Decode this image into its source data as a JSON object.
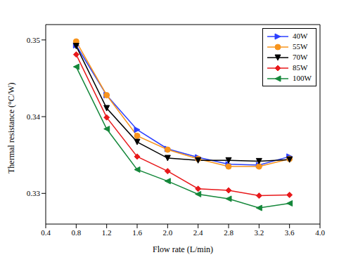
{
  "chart_data": {
    "type": "line",
    "x_label": "Flow rate (L/min)",
    "y_label": "Thermal resistance (°C/W)",
    "x": [
      0.8,
      1.2,
      1.6,
      2.0,
      2.4,
      2.8,
      3.2,
      3.6
    ],
    "xlim": [
      0.4,
      4.0
    ],
    "xticks": [
      0.4,
      0.8,
      1.2,
      1.6,
      {
        "value": 2,
        "label": "2.0"
      },
      2.4,
      2.8,
      3.2,
      3.6,
      {
        "value": 4,
        "label": "4.0"
      }
    ],
    "ylim": [
      0.326,
      0.352
    ],
    "yticks": [
      0.33,
      0.34,
      0.35
    ],
    "grid": false,
    "legend": "upper right",
    "series": [
      {
        "name": "40W",
        "color": "#2b3fff",
        "marker": "triangle-right",
        "values": [
          0.3493,
          0.3428,
          0.3383,
          0.3358,
          0.3347,
          0.3338,
          0.3337,
          0.3348
        ]
      },
      {
        "name": "55W",
        "color": "#f7941d",
        "marker": "circle",
        "values": [
          0.3498,
          0.3428,
          0.3375,
          0.3357,
          0.3345,
          0.3335,
          0.3335,
          0.3345
        ]
      },
      {
        "name": "70W",
        "color": "#000000",
        "marker": "triangle-down",
        "values": [
          0.3492,
          0.3411,
          0.3367,
          0.3346,
          0.3343,
          0.3343,
          0.3342,
          0.3344
        ]
      },
      {
        "name": "85W",
        "color": "#e8191b",
        "marker": "diamond",
        "values": [
          0.3481,
          0.3399,
          0.3348,
          0.3329,
          0.3306,
          0.3304,
          0.3297,
          0.3298
        ]
      },
      {
        "name": "100W",
        "color": "#14873a",
        "marker": "triangle-left",
        "values": [
          0.3465,
          0.3384,
          0.3331,
          0.3316,
          0.3299,
          0.3293,
          0.3281,
          0.3287
        ]
      }
    ]
  }
}
